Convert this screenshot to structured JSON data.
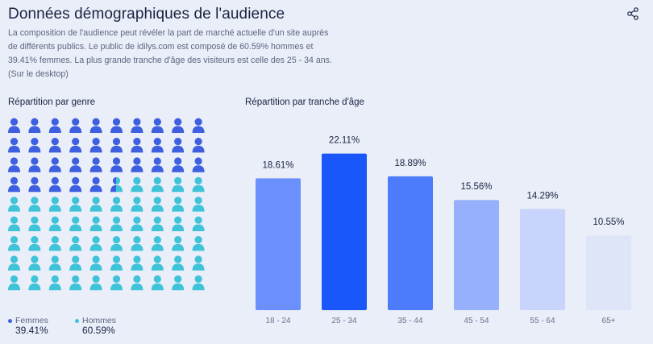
{
  "header": {
    "title": "Données démographiques de l'audience",
    "description": "La composition de l'audience peut révéler la part de marché actuelle d'un site auprès de différents publics. Le public de idilys.com est composé de 60.59% hommes et 39.41% femmes. La plus grande tranche d'âge des visiteurs est celle des 25 - 34 ans. (Sur le desktop)",
    "share_icon": "share-icon"
  },
  "gender": {
    "title": "Répartition par genre",
    "legend": [
      {
        "label": "Femmes",
        "value": "39.41%",
        "color": "#3d5fe0"
      },
      {
        "label": "Hommes",
        "value": "60.59%",
        "color": "#3fc3d9"
      }
    ]
  },
  "age": {
    "title": "Répartition par tranche d'âge"
  },
  "chart_data": [
    {
      "type": "pictogram",
      "title": "Répartition par genre",
      "categories": [
        "Femmes",
        "Hommes"
      ],
      "values": [
        39.41,
        60.59
      ],
      "icons_total": 90,
      "grid": {
        "columns": 10,
        "rows": 9
      },
      "colors": [
        "#3d5fe0",
        "#3fc3d9"
      ]
    },
    {
      "type": "bar",
      "title": "Répartition par tranche d'âge",
      "categories": [
        "18 - 24",
        "25 - 34",
        "35 - 44",
        "45 - 54",
        "55 - 64",
        "65+"
      ],
      "values": [
        18.61,
        22.11,
        18.89,
        15.56,
        14.29,
        10.55
      ],
      "labels": [
        "18.61%",
        "22.11%",
        "18.89%",
        "15.56%",
        "14.29%",
        "10.55%"
      ],
      "colors": [
        "#6b8ffb",
        "#1a57fb",
        "#4c7bfb",
        "#97b0fc",
        "#c8d4fb",
        "#dfe5f9"
      ],
      "ylim": [
        0,
        24
      ],
      "grid": false
    }
  ]
}
